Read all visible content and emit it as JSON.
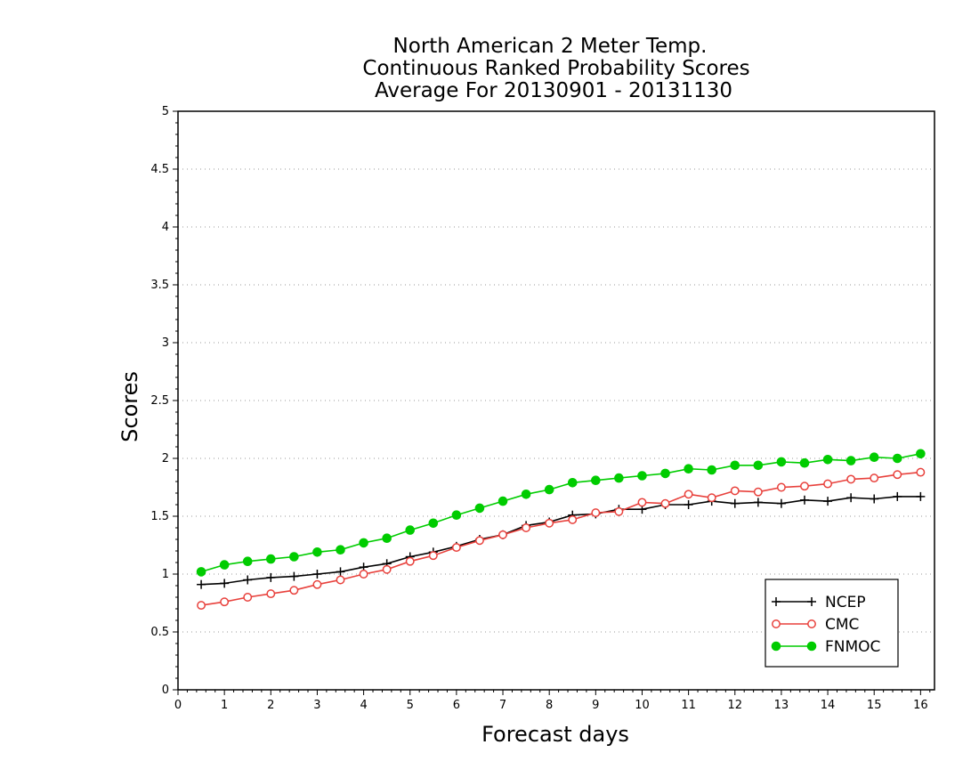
{
  "chart_data": {
    "type": "line",
    "title_lines": [
      "North American 2 Meter Temp.",
      "Continuous Ranked Probability Scores",
      "Average For 20130901 - 20131130"
    ],
    "xlabel": "Forecast days",
    "ylabel": "Scores",
    "xlim": [
      0,
      16.3
    ],
    "ylim": [
      0,
      5
    ],
    "x_ticks": [
      "0",
      "1",
      "2",
      "3",
      "4",
      "5",
      "6",
      "7",
      "8",
      "9",
      "10",
      "11",
      "12",
      "13",
      "14",
      "15",
      "16"
    ],
    "y_ticks": [
      "0",
      "0.5",
      "1",
      "1.5",
      "2",
      "2.5",
      "3",
      "3.5",
      "4",
      "4.5",
      "5"
    ],
    "grid": "horizontal-dotted",
    "legend_position": "bottom-right",
    "x": [
      0.5,
      1,
      1.5,
      2,
      2.5,
      3,
      3.5,
      4,
      4.5,
      5,
      5.5,
      6,
      6.5,
      7,
      7.5,
      8,
      8.5,
      9,
      9.5,
      10,
      10.5,
      11,
      11.5,
      12,
      12.5,
      13,
      13.5,
      14,
      14.5,
      15,
      15.5,
      16
    ],
    "series": [
      {
        "name": "NCEP",
        "color": "#000000",
        "marker": "plus",
        "values": [
          0.91,
          0.92,
          0.95,
          0.97,
          0.98,
          1.0,
          1.02,
          1.06,
          1.09,
          1.15,
          1.19,
          1.24,
          1.3,
          1.34,
          1.42,
          1.45,
          1.51,
          1.52,
          1.56,
          1.56,
          1.6,
          1.6,
          1.63,
          1.61,
          1.62,
          1.61,
          1.64,
          1.63,
          1.66,
          1.65,
          1.67,
          1.67
        ]
      },
      {
        "name": "CMC",
        "color": "#e8413c",
        "marker": "open-circle",
        "values": [
          0.73,
          0.76,
          0.8,
          0.83,
          0.86,
          0.91,
          0.95,
          1.0,
          1.04,
          1.11,
          1.16,
          1.23,
          1.29,
          1.34,
          1.4,
          1.44,
          1.47,
          1.53,
          1.54,
          1.62,
          1.61,
          1.69,
          1.66,
          1.72,
          1.71,
          1.75,
          1.76,
          1.78,
          1.82,
          1.83,
          1.86,
          1.88
        ]
      },
      {
        "name": "FNMOC",
        "color": "#00cc00",
        "marker": "filled-circle",
        "values": [
          1.02,
          1.08,
          1.11,
          1.13,
          1.15,
          1.19,
          1.21,
          1.27,
          1.31,
          1.38,
          1.44,
          1.51,
          1.57,
          1.63,
          1.69,
          1.73,
          1.79,
          1.81,
          1.83,
          1.85,
          1.87,
          1.91,
          1.9,
          1.94,
          1.94,
          1.97,
          1.96,
          1.99,
          1.98,
          2.01,
          2.0,
          2.04
        ]
      }
    ]
  }
}
